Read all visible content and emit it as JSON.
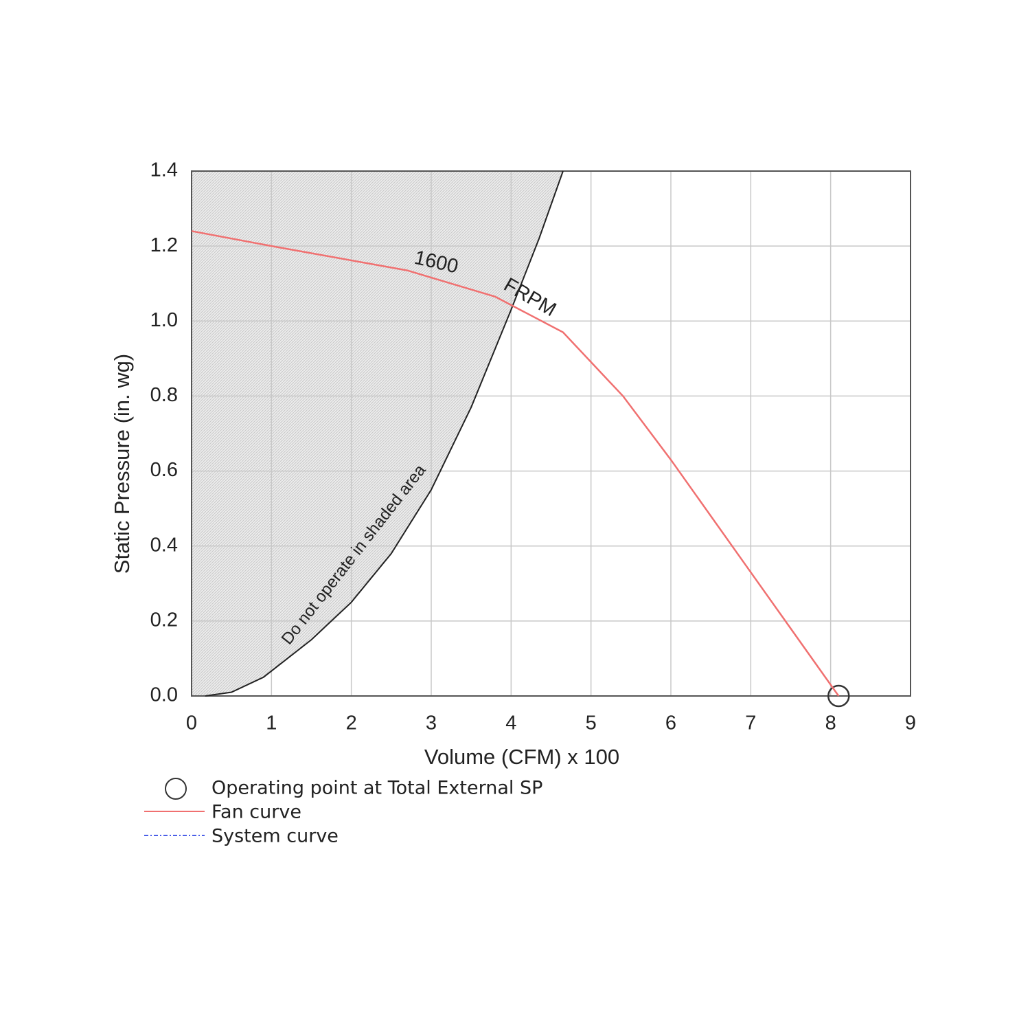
{
  "chart_data": {
    "type": "line",
    "xlabel": "Volume (CFM) x 100",
    "ylabel": "Static Pressure (in. wg)",
    "xlim": [
      0,
      9
    ],
    "xticks": [
      0,
      1,
      2,
      3,
      4,
      5,
      6,
      7,
      8,
      9
    ],
    "ylim": [
      0,
      1.4
    ],
    "yticks": [
      {
        "value": 0,
        "label": "0.0"
      },
      0.2,
      0.4,
      0.6,
      0.8,
      {
        "value": 1,
        "label": "1.0"
      },
      1.2,
      1.4
    ],
    "grid": true,
    "boundary": {
      "color": "#222222",
      "x": [
        0.17,
        0.5,
        0.9,
        1.5,
        2,
        2.5,
        3,
        3.5,
        4,
        4.35,
        4.65
      ],
      "values": [
        0,
        0.01,
        0.05,
        0.15,
        0.25,
        0.38,
        0.55,
        0.77,
        1.03,
        1.22,
        1.4
      ]
    },
    "series": [
      {
        "name": "Operating point at Total External SP",
        "marker": "circle",
        "color": "#333333",
        "x": [
          8.1
        ],
        "values": [
          0
        ]
      },
      {
        "name": "Fan curve",
        "color": "#f07070",
        "x": [
          0,
          1,
          2.7,
          3.8,
          4.65,
          5.4,
          6,
          7,
          8.1
        ],
        "values": [
          1.24,
          1.2,
          1.135,
          1.065,
          0.97,
          0.8,
          0.63,
          0.33,
          0
        ]
      },
      {
        "name": "System curve",
        "color": "#4a5ee8",
        "dash": "6 3 2 3",
        "x": [],
        "values": []
      }
    ],
    "annotations": [
      "1600",
      "FRPM",
      "Do not operate in shaded area"
    ]
  }
}
